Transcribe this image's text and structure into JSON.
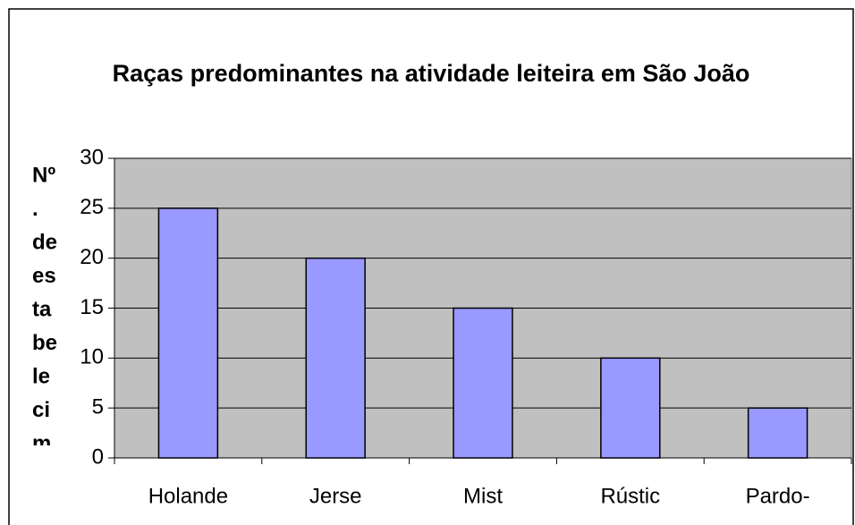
{
  "chart_data": {
    "type": "bar",
    "title": "Raças predominantes na atividade leiteira em São João",
    "y_label_lines": [
      "Nº",
      ".",
      "de",
      "es",
      "ta",
      "be",
      "le",
      "ci",
      "m"
    ],
    "categories": [
      "Holande",
      "Jerse",
      "Mist",
      "Rústic",
      "Pardo-"
    ],
    "values": [
      25,
      20,
      15,
      10,
      5
    ],
    "color": "#9999ff",
    "ylim": [
      0,
      30
    ],
    "yticks": [
      0,
      5,
      10,
      15,
      20,
      25,
      30
    ],
    "grid": true
  }
}
